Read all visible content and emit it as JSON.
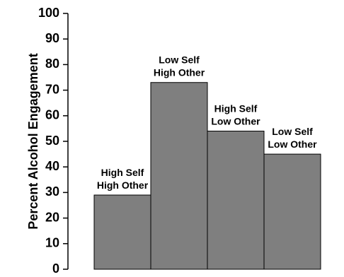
{
  "chart_data": {
    "type": "bar",
    "ylabel": "Percent Alcohol Engagement",
    "ylim": [
      0,
      100
    ],
    "yticks": [
      0,
      10,
      20,
      30,
      40,
      50,
      60,
      70,
      80,
      90,
      100
    ],
    "categories": [
      [
        "High Self",
        "High Other"
      ],
      [
        "Low Self",
        "High Other"
      ],
      [
        "High Self",
        "Low Other"
      ],
      [
        "Low Self",
        "Low Other"
      ]
    ],
    "values": [
      29,
      73,
      54,
      45
    ],
    "bar_color": "#7f7f7f",
    "grid": false
  }
}
